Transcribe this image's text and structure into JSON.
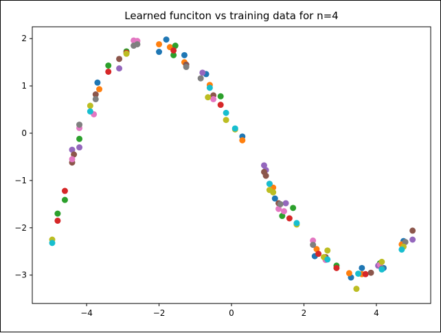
{
  "chart_data": {
    "type": "scatter",
    "title": "Learned funciton vs training data for n=4",
    "xlabel": "",
    "ylabel": "",
    "xlim": [
      -5.5,
      5.5
    ],
    "ylim": [
      -3.6,
      2.25
    ],
    "x_ticks": [
      -4,
      -2,
      0,
      2,
      4
    ],
    "x_tick_labels": [
      "−4",
      "−2",
      "0",
      "2",
      "4"
    ],
    "y_ticks": [
      -3,
      -2,
      -1,
      0,
      1,
      2
    ],
    "y_tick_labels": [
      "−3",
      "−2",
      "−1",
      "0",
      "1",
      "2"
    ],
    "grid": false,
    "legend": "none",
    "colors": [
      "#1f77b4",
      "#ff7f0e",
      "#2ca02c",
      "#d62728",
      "#9467bd",
      "#8c564b",
      "#e377c2",
      "#7f7f7f",
      "#bcbd22",
      "#17becf"
    ],
    "series": [
      {
        "color": "#1f77b4",
        "x": [
          -3.7,
          -2.0,
          -1.8,
          -1.3,
          -0.7,
          0.3,
          1.2,
          2.3,
          3.3,
          3.6,
          4.2,
          4.75
        ],
        "y": [
          1.07,
          1.72,
          1.98,
          1.65,
          1.25,
          -0.07,
          -1.38,
          -2.6,
          -3.05,
          -2.85,
          -2.85,
          -2.28
        ]
      },
      {
        "color": "#ff7f0e",
        "x": [
          -3.65,
          -2.0,
          -1.7,
          -1.3,
          -0.6,
          0.3,
          1.15,
          2.35,
          3.25,
          3.6,
          4.7
        ],
        "y": [
          0.93,
          1.88,
          1.82,
          1.5,
          1.02,
          -0.15,
          -1.15,
          -2.45,
          -2.96,
          -2.98,
          -2.35
        ]
      },
      {
        "color": "#2ca02c",
        "x": [
          -4.8,
          -4.6,
          -4.2,
          -3.4,
          -2.9,
          -1.6,
          -1.55,
          -0.3,
          1.4,
          1.7,
          2.9,
          4.1
        ],
        "y": [
          -1.7,
          -1.41,
          -0.12,
          1.43,
          1.73,
          1.65,
          1.85,
          0.78,
          -1.75,
          -1.58,
          -2.8,
          -2.75
        ]
      },
      {
        "color": "#d62728",
        "x": [
          -4.8,
          -4.6,
          -3.4,
          -2.9,
          -1.6,
          -0.3,
          1.6,
          2.4,
          2.9,
          3.7
        ],
        "y": [
          -1.85,
          -1.22,
          1.3,
          1.7,
          1.75,
          0.6,
          -1.8,
          -2.55,
          -2.85,
          -2.98
        ]
      },
      {
        "color": "#9467bd",
        "x": [
          -4.4,
          -4.2,
          -3.1,
          -0.8,
          0.9,
          0.95,
          1.05,
          1.5,
          4.05,
          5.0
        ],
        "y": [
          -0.35,
          -0.3,
          1.37,
          1.28,
          -0.68,
          -0.78,
          -1.07,
          -1.48,
          -2.8,
          -2.25
        ]
      },
      {
        "color": "#8c564b",
        "x": [
          -4.4,
          -4.35,
          -3.75,
          -3.1,
          -1.25,
          -0.5,
          0.9,
          0.95,
          1.3,
          2.6,
          3.85,
          5.0
        ],
        "y": [
          -0.62,
          -0.45,
          0.82,
          1.57,
          1.45,
          0.8,
          -0.82,
          -0.9,
          -1.48,
          -2.62,
          -2.95,
          -2.06
        ]
      },
      {
        "color": "#e377c2",
        "x": [
          -4.4,
          -4.2,
          -3.8,
          -2.7,
          -2.6,
          -0.5,
          1.3,
          1.45,
          2.25,
          2.6,
          4.1
        ],
        "y": [
          -0.55,
          0.11,
          0.4,
          1.96,
          1.95,
          0.72,
          -1.6,
          -1.65,
          -2.27,
          -2.68,
          -2.78
        ]
      },
      {
        "color": "#7f7f7f",
        "x": [
          -4.2,
          -3.75,
          -2.7,
          -2.6,
          -1.25,
          -0.85,
          1.35,
          2.25,
          4.15,
          4.8
        ],
        "y": [
          0.18,
          0.72,
          1.85,
          1.88,
          1.4,
          1.16,
          -1.5,
          -2.36,
          -2.86,
          -2.3
        ]
      },
      {
        "color": "#bcbd22",
        "x": [
          -4.95,
          -3.9,
          -2.9,
          -0.65,
          -0.15,
          0.1,
          1.05,
          1.15,
          1.8,
          2.55,
          2.65,
          3.45,
          4.15,
          4.75
        ],
        "y": [
          -2.25,
          0.58,
          1.68,
          0.76,
          0.28,
          0.08,
          -1.2,
          -1.25,
          -1.93,
          -2.62,
          -2.48,
          -3.29,
          -2.72,
          -2.4
        ]
      },
      {
        "color": "#17becf",
        "x": [
          -4.95,
          -3.9,
          -0.6,
          -0.15,
          0.1,
          1.05,
          1.8,
          2.65,
          3.5,
          4.15,
          4.7
        ],
        "y": [
          -2.32,
          0.46,
          0.96,
          0.43,
          0.1,
          -1.07,
          -1.9,
          -2.67,
          -2.97,
          -2.88,
          -2.46
        ]
      }
    ]
  }
}
